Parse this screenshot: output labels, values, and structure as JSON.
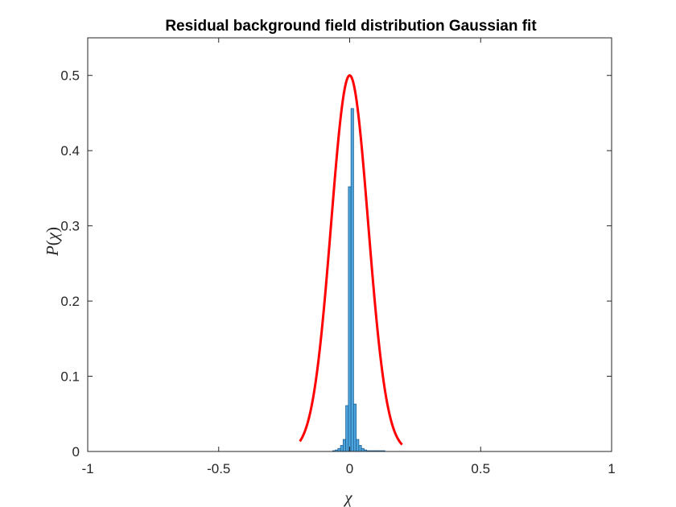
{
  "chart_data": {
    "type": "bar",
    "title": "Residual background field distribution Gaussian fit",
    "xlabel": "χ",
    "ylabel_main": "P",
    "ylabel_open": "(",
    "ylabel_var": "χ",
    "ylabel_close": ")",
    "xlim": [
      -1,
      1
    ],
    "ylim": [
      0,
      0.55
    ],
    "xticks": [
      -1,
      -0.5,
      0,
      0.5,
      1
    ],
    "xtick_labels": [
      "-1",
      "-0.5",
      "0",
      "0.5",
      "1"
    ],
    "yticks": [
      0,
      0.1,
      0.2,
      0.3,
      0.4,
      0.5
    ],
    "ytick_labels": [
      "0",
      "0.1",
      "0.2",
      "0.3",
      "0.4",
      "0.5"
    ],
    "grid": false,
    "histogram": {
      "bin_width": 0.01,
      "bins": [
        {
          "x": -0.06,
          "value": 0.001
        },
        {
          "x": -0.05,
          "value": 0.002
        },
        {
          "x": -0.04,
          "value": 0.004
        },
        {
          "x": -0.03,
          "value": 0.008
        },
        {
          "x": -0.02,
          "value": 0.016
        },
        {
          "x": -0.01,
          "value": 0.061
        },
        {
          "x": 0.0,
          "value": 0.352
        },
        {
          "x": 0.01,
          "value": 0.456
        },
        {
          "x": 0.02,
          "value": 0.063
        },
        {
          "x": 0.03,
          "value": 0.016
        },
        {
          "x": 0.04,
          "value": 0.008
        },
        {
          "x": 0.05,
          "value": 0.004
        },
        {
          "x": 0.06,
          "value": 0.002
        },
        {
          "x": 0.07,
          "value": 0.001
        },
        {
          "x": 0.08,
          "value": 0.001
        },
        {
          "x": 0.09,
          "value": 0.001
        },
        {
          "x": 0.1,
          "value": 0.001
        },
        {
          "x": 0.11,
          "value": 0.001
        },
        {
          "x": 0.12,
          "value": 0.001
        },
        {
          "x": 0.13,
          "value": 0.001
        }
      ],
      "fill": "#4DA6E0",
      "edge": "#1F5F8F"
    },
    "fit_curve": {
      "type": "gaussian",
      "mean": 0,
      "sigma": 0.0707,
      "peak": 0.5,
      "x_range": [
        -0.19,
        0.2
      ],
      "color": "#FF0000"
    }
  }
}
